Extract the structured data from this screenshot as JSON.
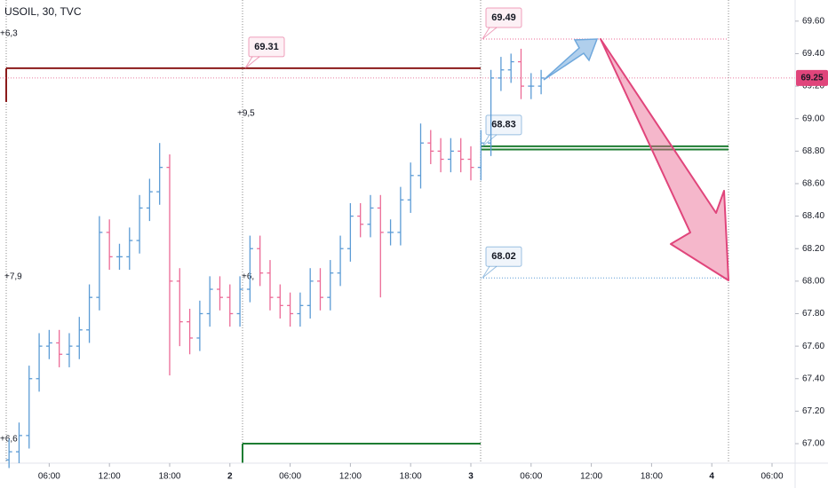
{
  "chart_data": {
    "type": "ohlc",
    "title": "USOIL, 30, TVC",
    "up_color": "#5b9bd5",
    "down_color": "#ec6a96",
    "x": [
      2,
      3,
      4,
      5,
      6,
      7,
      8,
      9,
      10,
      11,
      12,
      13,
      14,
      15,
      16,
      17,
      18,
      19,
      20,
      21,
      22,
      23,
      24,
      25,
      26,
      27,
      28,
      29,
      30,
      31,
      32,
      33,
      34,
      35,
      36,
      37,
      38,
      39,
      40,
      41,
      42,
      43,
      44,
      45,
      46,
      47,
      48,
      49,
      50,
      51,
      52,
      53,
      54,
      55
    ],
    "open": [
      66.9,
      66.95,
      67.05,
      67.4,
      67.6,
      67.62,
      67.55,
      67.6,
      67.7,
      67.9,
      68.3,
      68.15,
      68.15,
      68.25,
      68.45,
      68.55,
      68.7,
      68.0,
      67.75,
      67.65,
      67.8,
      67.95,
      67.9,
      67.8,
      67.95,
      68.2,
      68.05,
      67.9,
      67.85,
      67.8,
      67.85,
      68.0,
      67.9,
      68.05,
      68.2,
      68.4,
      68.35,
      68.45,
      68.3,
      68.3,
      68.5,
      68.65,
      68.85,
      68.8,
      68.75,
      68.8,
      68.75,
      68.7,
      68.85,
      69.25,
      69.3,
      69.35,
      69.2,
      69.2
    ],
    "high": [
      67.03,
      67.13,
      67.48,
      67.68,
      67.7,
      67.7,
      67.68,
      67.78,
      67.98,
      68.4,
      68.38,
      68.23,
      68.33,
      68.53,
      68.63,
      68.85,
      68.78,
      68.08,
      67.83,
      67.88,
      68.03,
      68.03,
      67.98,
      68.03,
      68.28,
      68.28,
      68.13,
      67.98,
      67.93,
      67.93,
      68.08,
      68.08,
      68.13,
      68.28,
      68.48,
      68.48,
      68.53,
      68.53,
      68.38,
      68.58,
      68.73,
      68.97,
      68.93,
      68.88,
      68.88,
      68.88,
      68.83,
      68.93,
      69.3,
      69.38,
      69.4,
      69.43,
      69.28,
      69.3
    ],
    "low": [
      66.85,
      66.88,
      66.97,
      67.32,
      67.52,
      67.47,
      67.47,
      67.52,
      67.62,
      67.82,
      68.07,
      68.07,
      68.07,
      68.17,
      68.37,
      68.47,
      67.42,
      67.6,
      67.55,
      67.57,
      67.72,
      67.82,
      67.72,
      67.72,
      67.87,
      67.97,
      67.82,
      67.77,
      67.72,
      67.72,
      67.77,
      67.82,
      67.82,
      67.97,
      68.12,
      68.27,
      68.27,
      67.9,
      68.22,
      68.22,
      68.42,
      68.57,
      68.72,
      68.67,
      68.67,
      68.67,
      68.62,
      68.62,
      68.77,
      69.17,
      69.22,
      69.12,
      69.12,
      69.15
    ],
    "close": [
      66.95,
      67.05,
      67.4,
      67.6,
      67.62,
      67.55,
      67.6,
      67.7,
      67.9,
      68.3,
      68.15,
      68.15,
      68.25,
      68.45,
      68.55,
      68.7,
      68.0,
      67.75,
      67.65,
      67.8,
      67.95,
      67.9,
      67.8,
      67.95,
      68.2,
      68.05,
      67.9,
      67.85,
      67.8,
      67.85,
      68.0,
      67.9,
      68.05,
      68.2,
      68.4,
      68.35,
      68.45,
      68.3,
      68.3,
      68.5,
      68.65,
      68.85,
      68.8,
      68.75,
      68.8,
      68.75,
      68.7,
      68.85,
      69.25,
      69.3,
      69.35,
      69.2,
      69.2,
      69.25
    ],
    "xlim": [
      1.1,
      80.3
    ],
    "ylim": [
      66.88,
      69.73
    ],
    "xticks": [
      {
        "value": 6,
        "label": "06:00"
      },
      {
        "value": 12,
        "label": "12:00"
      },
      {
        "value": 18,
        "label": "18:00"
      },
      {
        "value": 24,
        "label": "2"
      },
      {
        "value": 30,
        "label": "06:00"
      },
      {
        "value": 36,
        "label": "12:00"
      },
      {
        "value": 42,
        "label": "18:00"
      },
      {
        "value": 48,
        "label": "3"
      },
      {
        "value": 54,
        "label": "06:00"
      },
      {
        "value": 60,
        "label": "12:00"
      },
      {
        "value": 66,
        "label": "18:00"
      },
      {
        "value": 72,
        "label": "4"
      },
      {
        "value": 78,
        "label": "06:00"
      }
    ],
    "yticks": [
      {
        "value": 67.0,
        "label": "67.00"
      },
      {
        "value": 67.2,
        "label": "67.20"
      },
      {
        "value": 67.4,
        "label": "67.40"
      },
      {
        "value": 67.6,
        "label": "67.60"
      },
      {
        "value": 67.8,
        "label": "67.80"
      },
      {
        "value": 68.0,
        "label": "68.00"
      },
      {
        "value": 68.2,
        "label": "68.20"
      },
      {
        "value": 68.4,
        "label": "68.40"
      },
      {
        "value": 68.6,
        "label": "68.60"
      },
      {
        "value": 68.8,
        "label": "68.80"
      },
      {
        "value": 69.0,
        "label": "69.00"
      },
      {
        "value": 69.2,
        "label": "69.20"
      },
      {
        "value": 69.4,
        "label": "69.40"
      },
      {
        "value": 69.6,
        "label": "69.60"
      }
    ],
    "last_price": {
      "value": 69.25,
      "color": "#e0457b"
    },
    "price_labels": [
      {
        "value": 69.31,
        "color": "#e0457b",
        "line_color": "#8b1a1a",
        "line": "solid"
      },
      {
        "value": 69.49,
        "color": "#e0457b",
        "line_color": "#ec6a96",
        "line": "dotted"
      },
      {
        "value": 68.83,
        "color": "#3d85c6",
        "line_color": "#1e7d32",
        "line": "solid"
      },
      {
        "value": 68.02,
        "color": "#3d85c6",
        "line_color": "#5b9bd5",
        "line": "dotted"
      }
    ],
    "levels": [
      {
        "value": 68.81,
        "color": "#1e7d32"
      },
      {
        "value": 67.0,
        "color": "#1e7d32"
      }
    ],
    "notes": [
      {
        "text": "+6,3",
        "color": "#ec6a96"
      },
      {
        "text": "+9,5",
        "color": "#ec6a96"
      },
      {
        "text": "+7,9",
        "color": "#5b9bd5"
      },
      {
        "text": "+6,",
        "color": "#5b9bd5"
      },
      {
        "text": "+6,6",
        "color": "#ec6a96"
      }
    ]
  }
}
